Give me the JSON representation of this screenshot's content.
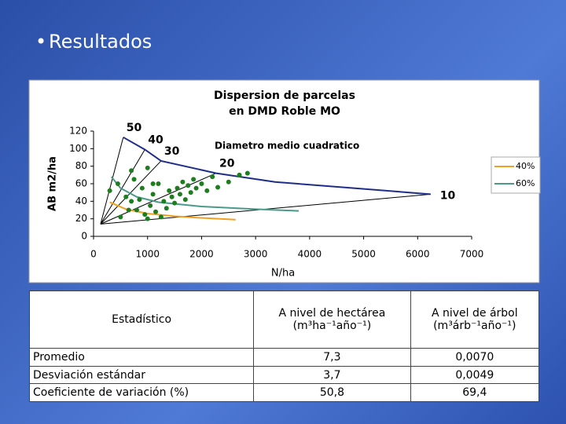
{
  "slide": {
    "bullet": "Resultados"
  },
  "chart_data": {
    "type": "scatter",
    "title": [
      "Dispersion de parcelas",
      "en DMD Roble MO"
    ],
    "xlabel": "N/ha",
    "ylabel": "AB m2/ha",
    "xlim": [
      0,
      7000
    ],
    "ylim": [
      0,
      120
    ],
    "xticks": [
      0,
      1000,
      2000,
      3000,
      4000,
      5000,
      6000,
      7000
    ],
    "yticks": [
      0,
      20,
      40,
      60,
      80,
      100,
      120
    ],
    "annotation": "Diametro medio cuadratico",
    "legend": "right",
    "series": [
      {
        "color": "#1e7d1e",
        "x": [
          300,
          450,
          500,
          600,
          650,
          700,
          750,
          800,
          850,
          900,
          950,
          1000,
          1050,
          1100,
          1150,
          1200,
          1250,
          1300,
          1350,
          1400,
          1450,
          1500,
          1550,
          1600,
          1650,
          1700,
          1750,
          1800,
          1850,
          1900,
          2000,
          2100,
          2200,
          2300,
          2500,
          2700,
          2850,
          1000,
          1100,
          700
        ],
        "y": [
          52,
          60,
          22,
          45,
          30,
          75,
          65,
          30,
          42,
          55,
          25,
          20,
          35,
          48,
          28,
          60,
          22,
          40,
          32,
          52,
          45,
          38,
          55,
          48,
          62,
          42,
          58,
          50,
          65,
          55,
          60,
          52,
          68,
          56,
          62,
          70,
          72,
          78,
          60,
          40
        ]
      }
    ],
    "lines": [
      {
        "name": "40%",
        "color": "#f0a020",
        "x": [
          300,
          600,
          1000,
          1500,
          2000,
          2630
        ],
        "y": [
          39,
          31,
          26,
          23,
          21,
          19
        ]
      },
      {
        "name": "60%",
        "color": "#4a9a8a",
        "x": [
          330,
          500,
          800,
          1200,
          2000,
          3000,
          3800
        ],
        "y": [
          68,
          55,
          45,
          39,
          34,
          31,
          29
        ]
      },
      {
        "color": "#1f2d8a",
        "x": [
          550,
          950,
          1250,
          2270,
          3360,
          4820,
          6240
        ],
        "y": [
          113,
          99,
          86,
          72,
          62,
          55,
          48
        ]
      }
    ],
    "diameter_lines": [
      {
        "label": "50",
        "x": [
          130,
          550
        ],
        "y": [
          14,
          113
        ]
      },
      {
        "label": "40",
        "x": [
          130,
          950
        ],
        "y": [
          14,
          99
        ]
      },
      {
        "label": "30",
        "x": [
          130,
          1250
        ],
        "y": [
          14,
          86
        ]
      },
      {
        "label": "20",
        "x": [
          130,
          2270
        ],
        "y": [
          14,
          72
        ]
      },
      {
        "label": "10",
        "x": [
          130,
          6240
        ],
        "y": [
          14,
          48
        ]
      }
    ]
  },
  "table": {
    "header": [
      "Estadístico",
      "A nivel de hectárea",
      "(m³ha⁻¹año⁻¹)",
      "A nivel de árbol",
      "(m³árb⁻¹año⁻¹)"
    ],
    "rows": [
      [
        "Promedio",
        "7,3",
        "0,0070"
      ],
      [
        "Desviación estándar",
        "3,7",
        "0,0049"
      ],
      [
        "Coeficiente de variación (%)",
        "50,8",
        "69,4"
      ]
    ]
  }
}
